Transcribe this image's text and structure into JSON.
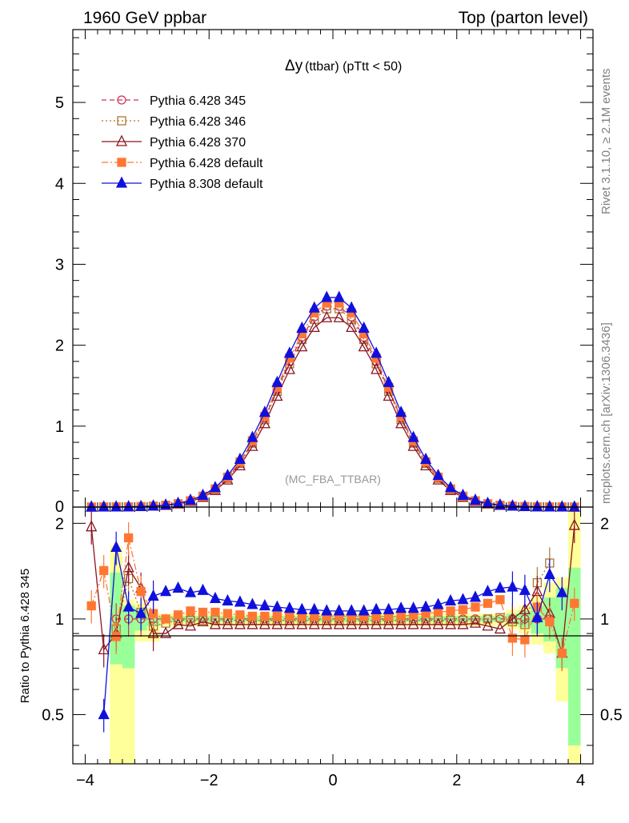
{
  "header": {
    "left": "1960 GeV ppbar",
    "right": "Top (parton level)"
  },
  "side_text": {
    "rivet": "Rivet 3.1.10, ≥ 2.1M events",
    "mcplots": "mcplots.cern.ch [arXiv:1306.3436]"
  },
  "chart_data": {
    "type": "line",
    "title_symbol": "Δy",
    "title_rest": "(ttbar) (pTtt < 50)",
    "watermark": "(MC_FBA_TTBAR)",
    "ratio_ylabel": "Ratio to Pythia 6.428 345",
    "xlim": [
      -4.2,
      4.2
    ],
    "ylim_main": [
      0,
      5.9
    ],
    "ylim_ratio": [
      0.35,
      2.25
    ],
    "x_ticks": [
      "−4",
      "−2",
      "0",
      "2",
      "4"
    ],
    "x_tick_values": [
      -4,
      -2,
      0,
      2,
      4
    ],
    "y_ticks_main": [
      "0",
      "1",
      "2",
      "3",
      "4",
      "5"
    ],
    "y_ticks_ratio": [
      "0.5",
      "1",
      "2"
    ],
    "x": [
      -3.9,
      -3.7,
      -3.5,
      -3.3,
      -3.1,
      -2.9,
      -2.7,
      -2.5,
      -2.3,
      -2.1,
      -1.9,
      -1.7,
      -1.5,
      -1.3,
      -1.1,
      -0.9,
      -0.7,
      -0.5,
      -0.3,
      -0.1,
      0.1,
      0.3,
      0.5,
      0.7,
      0.9,
      1.1,
      1.3,
      1.5,
      1.7,
      1.9,
      2.1,
      2.3,
      2.5,
      2.7,
      2.9,
      3.1,
      3.3,
      3.5,
      3.7,
      3.9
    ],
    "series": [
      {
        "name": "Pythia 6.428 345",
        "color": "#cc3355",
        "marker": "open-circle",
        "dash": "dash",
        "values": [
          0.0,
          0.001,
          0.002,
          0.003,
          0.006,
          0.012,
          0.022,
          0.04,
          0.075,
          0.13,
          0.22,
          0.36,
          0.55,
          0.8,
          1.1,
          1.45,
          1.8,
          2.1,
          2.35,
          2.48,
          2.48,
          2.35,
          2.1,
          1.8,
          1.45,
          1.1,
          0.8,
          0.55,
          0.36,
          0.22,
          0.13,
          0.075,
          0.04,
          0.022,
          0.012,
          0.006,
          0.003,
          0.002,
          0.001,
          0.0
        ],
        "ratio": [
          null,
          null,
          1.0,
          1.0,
          1.0,
          1.0,
          1.0,
          1.0,
          1.0,
          1.0,
          1.0,
          1.0,
          1.0,
          1.0,
          1.0,
          1.0,
          1.0,
          1.0,
          1.0,
          1.0,
          1.0,
          1.0,
          1.0,
          1.0,
          1.0,
          1.0,
          1.0,
          1.0,
          1.0,
          1.0,
          1.0,
          1.0,
          1.0,
          1.0,
          1.0,
          1.0,
          1.0,
          1.0,
          null,
          null
        ]
      },
      {
        "name": "Pythia 6.428 346",
        "color": "#aa7733",
        "marker": "open-square",
        "dash": "dot",
        "values": [
          0.0,
          0.001,
          0.002,
          0.003,
          0.006,
          0.012,
          0.022,
          0.04,
          0.074,
          0.128,
          0.217,
          0.355,
          0.54,
          0.79,
          1.08,
          1.43,
          1.77,
          2.07,
          2.32,
          2.45,
          2.45,
          2.32,
          2.07,
          1.77,
          1.43,
          1.08,
          0.79,
          0.54,
          0.355,
          0.217,
          0.128,
          0.074,
          0.04,
          0.022,
          0.012,
          0.006,
          0.003,
          0.002,
          0.001,
          0.0
        ],
        "ratio": [
          null,
          null,
          0.93,
          1.34,
          1.05,
          0.95,
          0.97,
          0.99,
          0.99,
          0.99,
          0.99,
          0.99,
          0.99,
          0.99,
          0.99,
          0.99,
          0.99,
          0.99,
          0.99,
          0.99,
          0.99,
          0.99,
          0.99,
          0.99,
          0.99,
          0.99,
          0.99,
          0.99,
          0.99,
          0.99,
          0.99,
          0.99,
          1.0,
          1.01,
          0.98,
          0.96,
          1.3,
          1.5,
          null,
          null
        ]
      },
      {
        "name": "Pythia 6.428 370",
        "color": "#8b1520",
        "marker": "open-triangle",
        "dash": "solid",
        "values": [
          0.0,
          0.001,
          0.002,
          0.003,
          0.006,
          0.011,
          0.02,
          0.037,
          0.069,
          0.12,
          0.205,
          0.335,
          0.51,
          0.75,
          1.03,
          1.37,
          1.7,
          1.98,
          2.22,
          2.34,
          2.34,
          2.22,
          1.98,
          1.7,
          1.37,
          1.03,
          0.75,
          0.51,
          0.335,
          0.205,
          0.12,
          0.069,
          0.037,
          0.02,
          0.011,
          0.006,
          0.003,
          0.002,
          0.001,
          0.0
        ],
        "ratio": [
          1.95,
          0.8,
          0.9,
          1.45,
          1.25,
          0.9,
          0.9,
          0.96,
          0.95,
          0.98,
          0.96,
          0.96,
          0.96,
          0.96,
          0.96,
          0.96,
          0.96,
          0.96,
          0.96,
          0.96,
          0.96,
          0.96,
          0.96,
          0.96,
          0.96,
          0.96,
          0.96,
          0.96,
          0.96,
          0.96,
          0.96,
          0.97,
          0.95,
          0.93,
          1.0,
          1.07,
          1.22,
          1.04,
          0.78,
          1.97
        ]
      },
      {
        "name": "Pythia 6.428 default",
        "color": "#ff7733",
        "marker": "filled-square",
        "dash": "dashdot",
        "values": [
          0.0,
          0.001,
          0.002,
          0.003,
          0.006,
          0.012,
          0.023,
          0.041,
          0.078,
          0.135,
          0.225,
          0.37,
          0.56,
          0.82,
          1.12,
          1.48,
          1.84,
          2.14,
          2.4,
          2.52,
          2.52,
          2.4,
          2.14,
          1.84,
          1.48,
          1.12,
          0.82,
          0.56,
          0.37,
          0.225,
          0.135,
          0.078,
          0.041,
          0.023,
          0.012,
          0.006,
          0.003,
          0.002,
          0.001,
          0.0
        ],
        "ratio": [
          1.1,
          1.42,
          0.88,
          1.8,
          1.22,
          1.04,
          1.0,
          1.03,
          1.06,
          1.05,
          1.05,
          1.04,
          1.03,
          1.02,
          1.02,
          1.02,
          1.02,
          1.02,
          1.02,
          1.02,
          1.02,
          1.02,
          1.02,
          1.02,
          1.02,
          1.02,
          1.03,
          1.04,
          1.05,
          1.06,
          1.07,
          1.09,
          1.12,
          1.15,
          0.87,
          0.86,
          1.09,
          0.98,
          0.78,
          1.12
        ]
      },
      {
        "name": "Pythia 8.308 default",
        "color": "#1010dd",
        "marker": "filled-triangle",
        "dash": "solid",
        "values": [
          0.0,
          0.001,
          0.002,
          0.003,
          0.007,
          0.013,
          0.025,
          0.046,
          0.085,
          0.145,
          0.24,
          0.39,
          0.59,
          0.86,
          1.17,
          1.54,
          1.9,
          2.21,
          2.46,
          2.59,
          2.59,
          2.46,
          2.21,
          1.9,
          1.54,
          1.17,
          0.86,
          0.59,
          0.39,
          0.24,
          0.145,
          0.085,
          0.046,
          0.025,
          0.013,
          0.007,
          0.003,
          0.002,
          0.001,
          0.0
        ],
        "ratio": [
          null,
          0.5,
          1.68,
          1.09,
          1.04,
          1.18,
          1.22,
          1.25,
          1.21,
          1.23,
          1.16,
          1.14,
          1.13,
          1.11,
          1.1,
          1.09,
          1.08,
          1.07,
          1.07,
          1.06,
          1.06,
          1.06,
          1.06,
          1.07,
          1.07,
          1.08,
          1.08,
          1.09,
          1.11,
          1.14,
          1.15,
          1.17,
          1.22,
          1.25,
          1.26,
          1.23,
          1.01,
          1.38,
          1.21,
          null
        ]
      }
    ],
    "band_x_edges": [
      -3.6,
      -3.4,
      -3.2,
      -3.0,
      -2.8,
      2.8,
      3.0,
      3.2,
      3.4,
      3.6,
      3.8,
      4.0
    ],
    "band_yellow": [
      [
        0.35,
        1.7
      ],
      [
        0.35,
        1.15
      ],
      [
        0.85,
        1.12
      ],
      [
        0.85,
        1.04
      ],
      [
        0.95,
        1.04
      ],
      [
        0.93,
        1.07
      ],
      [
        0.9,
        1.1
      ],
      [
        0.83,
        1.17
      ],
      [
        0.78,
        1.3
      ],
      [
        0.55,
        1.35
      ],
      [
        0.35,
        2.2
      ]
    ],
    "band_green": [
      [
        0.72,
        1.4
      ],
      [
        0.7,
        1.1
      ],
      [
        0.92,
        1.08
      ],
      [
        0.95,
        1.02
      ],
      [
        0.98,
        1.02
      ],
      [
        0.96,
        1.04
      ],
      [
        0.94,
        1.06
      ],
      [
        0.9,
        1.1
      ],
      [
        0.85,
        1.17
      ],
      [
        0.7,
        1.25
      ],
      [
        0.4,
        1.45
      ]
    ]
  }
}
